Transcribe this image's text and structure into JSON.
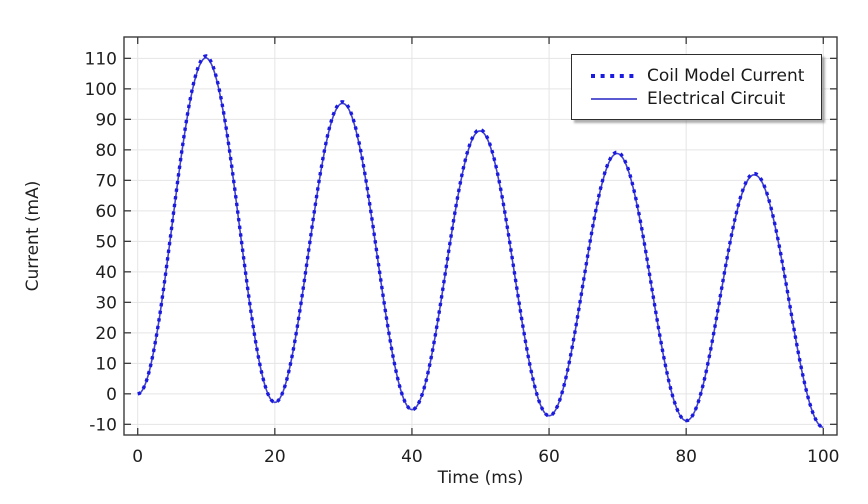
{
  "chart_data": {
    "type": "line",
    "title": "",
    "xlabel": "Time (ms)",
    "ylabel": "Current (mA)",
    "xlim": [
      -2,
      102
    ],
    "ylim": [
      -13.5,
      117
    ],
    "x_ticks": [
      0,
      20,
      40,
      60,
      80,
      100
    ],
    "y_ticks": [
      -10,
      0,
      10,
      20,
      30,
      40,
      50,
      60,
      70,
      80,
      90,
      100,
      110
    ],
    "grid": true,
    "legend_position": "top-right",
    "series": [
      {
        "name": "Coil Model Current",
        "style": "dotted",
        "color": "#1a1ae0",
        "peaks": [
          [
            10,
            110.8
          ],
          [
            30,
            95.7
          ],
          [
            50,
            86.6
          ],
          [
            70,
            79.2
          ],
          [
            90,
            72.2
          ]
        ],
        "valleys": [
          [
            0,
            0
          ],
          [
            20,
            -2.8
          ],
          [
            40,
            -5.2
          ],
          [
            60,
            -7.2
          ],
          [
            80,
            -8.8
          ],
          [
            100,
            -11
          ]
        ]
      },
      {
        "name": "Electrical Circuit",
        "style": "solid",
        "color": "#4343cd",
        "peaks": [
          [
            10,
            110.2
          ],
          [
            30,
            95.2
          ],
          [
            50,
            86.2
          ],
          [
            70,
            78.8
          ],
          [
            90,
            71.8
          ]
        ],
        "valleys": [
          [
            0,
            0
          ],
          [
            20,
            -2.8
          ],
          [
            40,
            -5.2
          ],
          [
            60,
            -7.2
          ],
          [
            80,
            -8.8
          ],
          [
            100,
            -11
          ]
        ]
      }
    ]
  },
  "colors": {
    "background": "#ffffff",
    "grid": "#e5e5e5",
    "axis": "#3b3b3b",
    "tick_text": "#1f1f1f",
    "legend_border": "#2e2e2e"
  }
}
